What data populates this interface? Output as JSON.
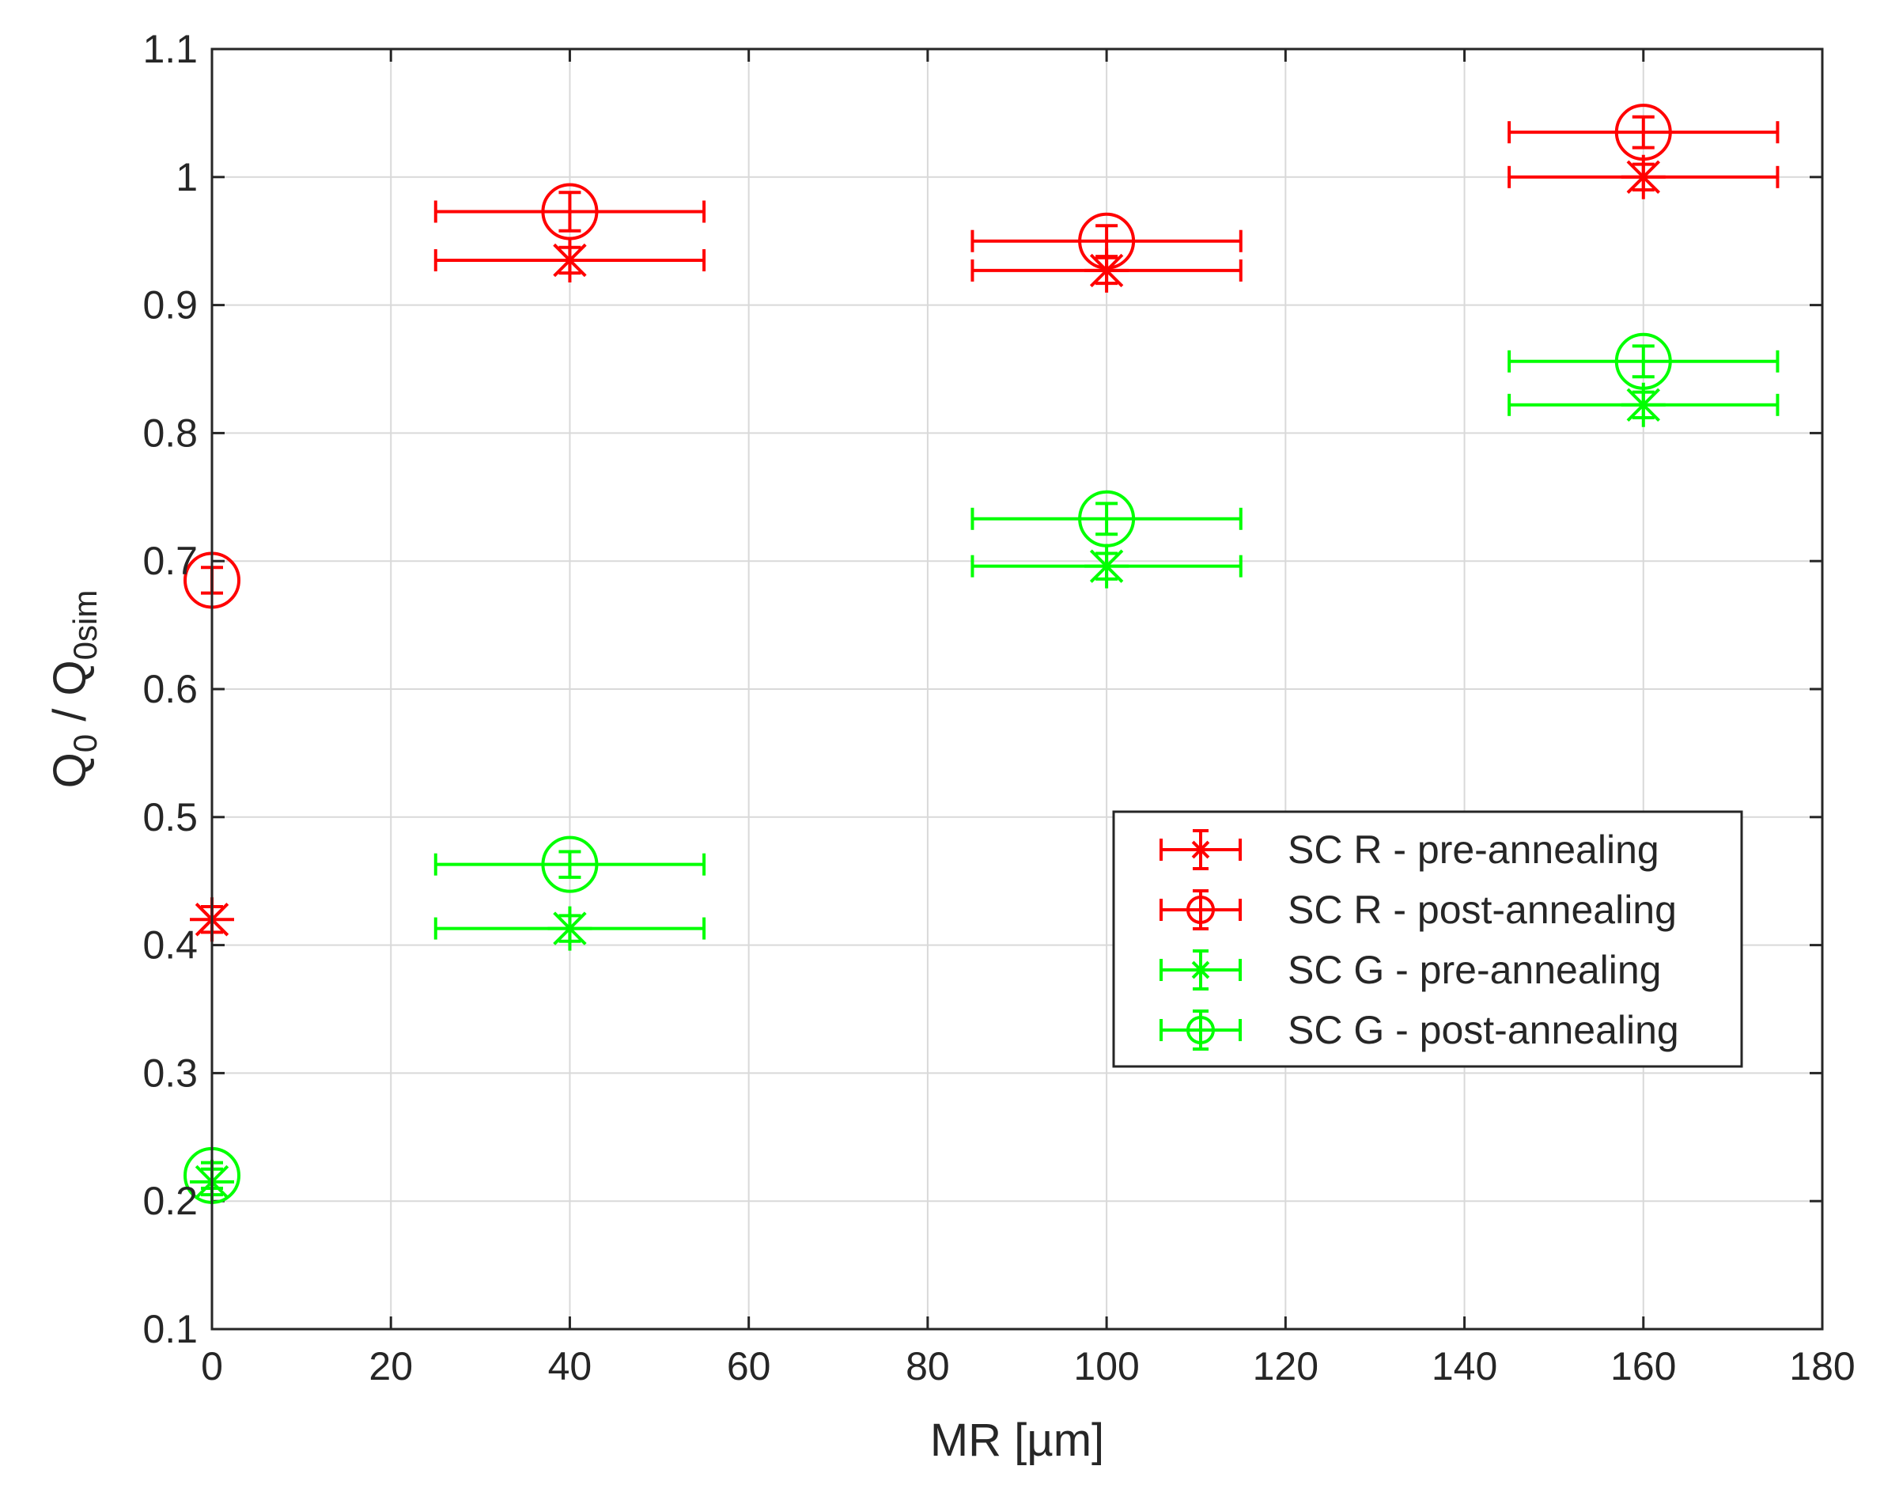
{
  "chart_data": {
    "type": "scatter",
    "title": "",
    "xlabel": "MR [µm]",
    "ylabel": {
      "main": "Q",
      "sub1": "0",
      "sep": " / Q",
      "sub2": "0sim"
    },
    "xlim": [
      0,
      180
    ],
    "ylim": [
      0.1,
      1.1
    ],
    "xticks": [
      "0",
      "20",
      "40",
      "60",
      "80",
      "100",
      "120",
      "140",
      "160",
      "180"
    ],
    "yticks": [
      "0.1",
      "0.2",
      "0.3",
      "0.4",
      "0.5",
      "0.6",
      "0.7",
      "0.8",
      "0.9",
      "1",
      "1.1"
    ],
    "grid": true,
    "legend_position": "center-right",
    "series": [
      {
        "name": "SC R - pre-annealing",
        "color": "#ff0000",
        "marker": "star",
        "points": [
          {
            "x": 0,
            "y": 0.42,
            "xerr": 0,
            "yerr": 0.01
          },
          {
            "x": 40,
            "y": 0.935,
            "xerr": 15,
            "yerr": 0.01
          },
          {
            "x": 100,
            "y": 0.927,
            "xerr": 15,
            "yerr": 0.01
          },
          {
            "x": 160,
            "y": 1.0,
            "xerr": 15,
            "yerr": 0.01
          }
        ]
      },
      {
        "name": "SC R - post-annealing",
        "color": "#ff0000",
        "marker": "circle",
        "points": [
          {
            "x": 0,
            "y": 0.685,
            "xerr": 0,
            "yerr": 0.01
          },
          {
            "x": 40,
            "y": 0.973,
            "xerr": 15,
            "yerr": 0.015
          },
          {
            "x": 100,
            "y": 0.95,
            "xerr": 15,
            "yerr": 0.012
          },
          {
            "x": 160,
            "y": 1.035,
            "xerr": 15,
            "yerr": 0.012
          }
        ]
      },
      {
        "name": "SC G - pre-annealing",
        "color": "#00ff00",
        "marker": "star",
        "points": [
          {
            "x": 0,
            "y": 0.215,
            "xerr": 0,
            "yerr": 0.01
          },
          {
            "x": 40,
            "y": 0.413,
            "xerr": 15,
            "yerr": 0.01
          },
          {
            "x": 100,
            "y": 0.696,
            "xerr": 15,
            "yerr": 0.01
          },
          {
            "x": 160,
            "y": 0.822,
            "xerr": 15,
            "yerr": 0.01
          }
        ]
      },
      {
        "name": "SC G - post-annealing",
        "color": "#00ff00",
        "marker": "circle",
        "points": [
          {
            "x": 0,
            "y": 0.22,
            "xerr": 0,
            "yerr": 0.01
          },
          {
            "x": 40,
            "y": 0.463,
            "xerr": 15,
            "yerr": 0.01
          },
          {
            "x": 100,
            "y": 0.733,
            "xerr": 15,
            "yerr": 0.012
          },
          {
            "x": 160,
            "y": 0.856,
            "xerr": 15,
            "yerr": 0.012
          }
        ]
      }
    ]
  }
}
